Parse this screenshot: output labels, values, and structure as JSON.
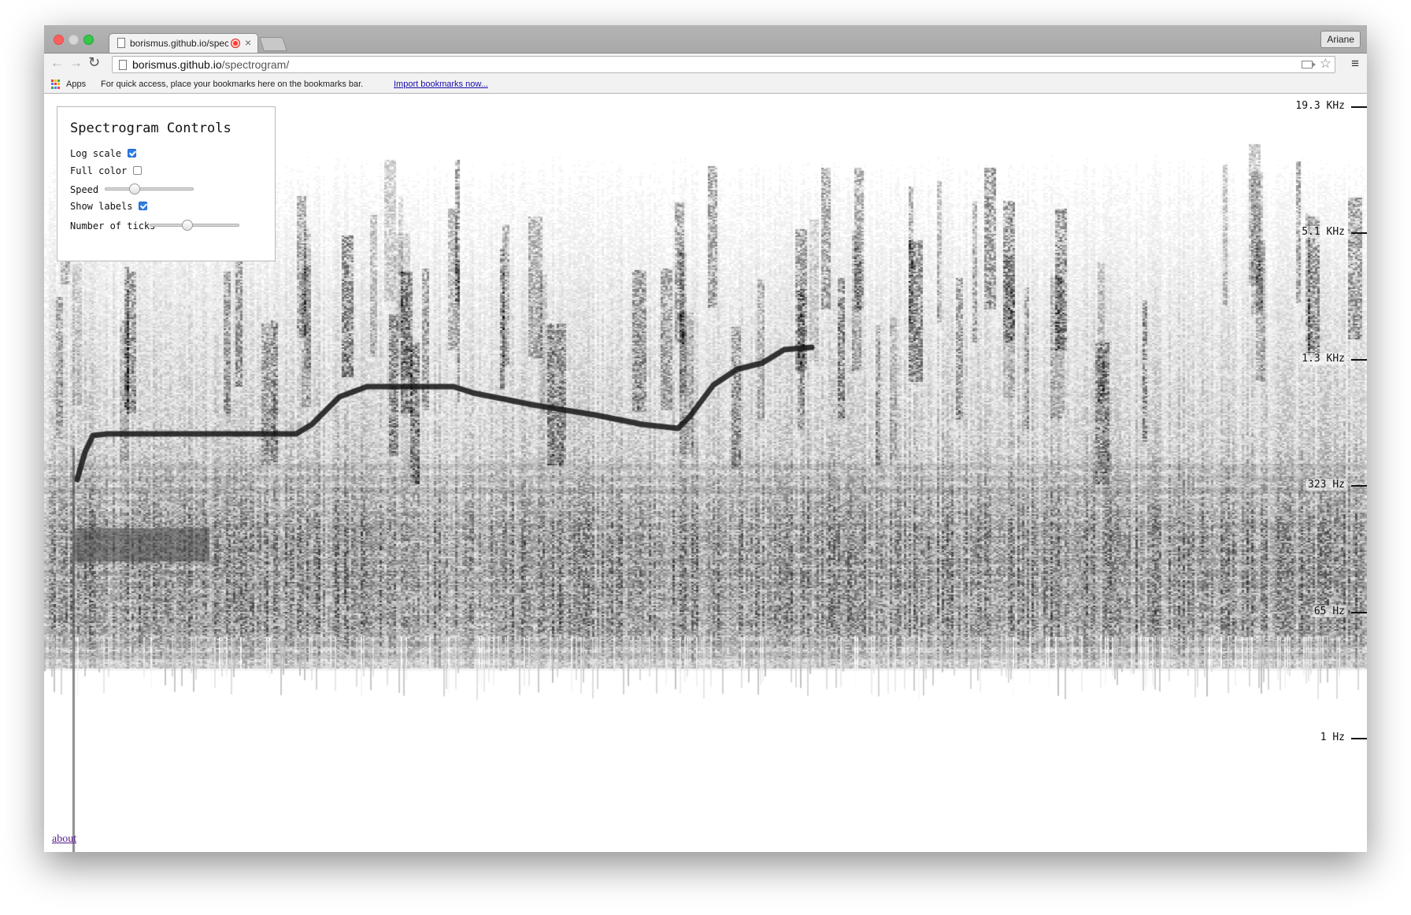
{
  "browser": {
    "tab_title": "borismus.github.io/spec",
    "tab_close": "×",
    "profile_name": "Ariane",
    "nav": {
      "back": "←",
      "forward": "→",
      "reload": "↻",
      "star": "☆",
      "menu": "≡"
    },
    "url_host": "borismus.github.io",
    "url_path": "/spectrogram/",
    "bookmarks": {
      "apps_label": "Apps",
      "hint": "For quick access, place your bookmarks here on the bookmarks bar.",
      "import_link": "Import bookmarks now...",
      "apps_colors": [
        "#e94235",
        "#fbbc04",
        "#34a853",
        "#4285f4",
        "#e94235",
        "#fbbc04",
        "#34a853",
        "#4285f4",
        "#e94235"
      ]
    }
  },
  "controls": {
    "title": "Spectrogram Controls",
    "log_scale": {
      "label": "Log scale",
      "checked": true
    },
    "full_color": {
      "label": "Full color",
      "checked": false
    },
    "speed": {
      "label": "Speed",
      "value": 0.3
    },
    "show_labels": {
      "label": "Show labels",
      "checked": true
    },
    "number_of_ticks": {
      "label": "Number of ticks",
      "value": 0.4
    }
  },
  "axis": {
    "labels": [
      {
        "text": "19.3 KHz",
        "level": 0.0
      },
      {
        "text": "5.1 KHz",
        "level": 0.2
      },
      {
        "text": "1.3 KHz",
        "level": 0.4
      },
      {
        "text": "323 Hz",
        "level": 0.6
      },
      {
        "text": "65 Hz",
        "level": 0.8
      },
      {
        "text": "1 Hz",
        "level": 1.0
      }
    ]
  },
  "footer": {
    "about": "about"
  },
  "colors": {
    "accent": "#2f7fe3",
    "link": "#1a0dab",
    "visited": "#551a8b"
  }
}
